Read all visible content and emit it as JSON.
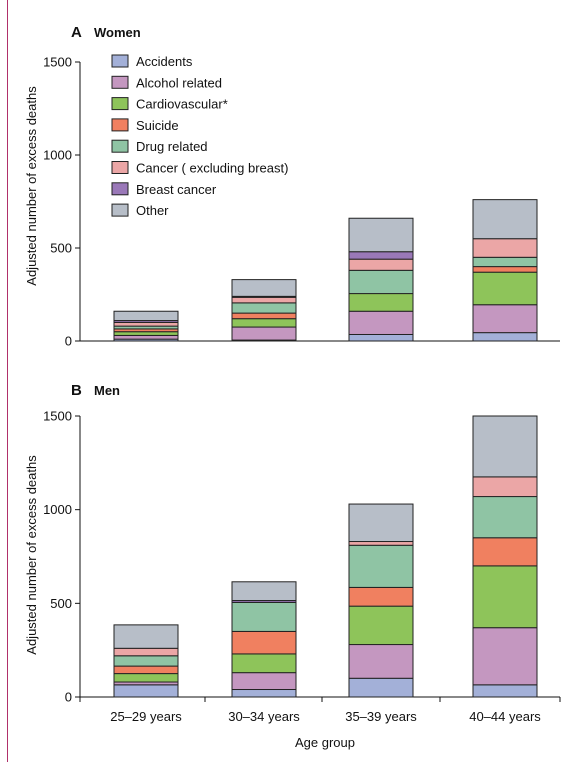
{
  "chart_data": [
    {
      "type": "bar",
      "stacked": true,
      "panel_letter": "A",
      "title": "Women",
      "categories": [
        "25–29 years",
        "30–34 years",
        "35–39 years",
        "40–44 years"
      ],
      "ylabel": "Adjusted number of excess deaths",
      "xlabel": "",
      "ylim": [
        0,
        1500
      ],
      "yticks": [
        0,
        500,
        1000,
        1500
      ],
      "series": [
        {
          "name": "Accidents",
          "color": "#a3b0d8",
          "values": [
            10,
            5,
            35,
            45
          ]
        },
        {
          "name": "Alcohol related",
          "color": "#c497c0",
          "values": [
            20,
            70,
            125,
            150
          ]
        },
        {
          "name": "Cardiovascular*",
          "color": "#8ec45a",
          "values": [
            20,
            45,
            95,
            175
          ]
        },
        {
          "name": "Suicide",
          "color": "#f08060",
          "values": [
            15,
            30,
            0,
            30
          ]
        },
        {
          "name": "Drug related",
          "color": "#8fc4a4",
          "values": [
            15,
            55,
            125,
            50
          ]
        },
        {
          "name": "Cancer ( excluding breast)",
          "color": "#eba6a6",
          "values": [
            20,
            30,
            60,
            100
          ]
        },
        {
          "name": "Breast cancer",
          "color": "#9a78b8",
          "values": [
            10,
            5,
            40,
            0
          ]
        },
        {
          "name": "Other",
          "color": "#b7bec8",
          "values": [
            50,
            90,
            180,
            210
          ]
        }
      ],
      "legend": "top-left",
      "grid": false
    },
    {
      "type": "bar",
      "stacked": true,
      "panel_letter": "B",
      "title": "Men",
      "categories": [
        "25–29 years",
        "30–34 years",
        "35–39 years",
        "40–44 years"
      ],
      "ylabel": "Adjusted number of excess deaths",
      "xlabel": "Age group",
      "ylim": [
        0,
        1500
      ],
      "yticks": [
        0,
        500,
        1000,
        1500
      ],
      "series": [
        {
          "name": "Accidents",
          "color": "#a3b0d8",
          "values": [
            65,
            40,
            100,
            65
          ]
        },
        {
          "name": "Alcohol related",
          "color": "#c497c0",
          "values": [
            15,
            90,
            180,
            305
          ]
        },
        {
          "name": "Cardiovascular*",
          "color": "#8ec45a",
          "values": [
            45,
            100,
            205,
            330
          ]
        },
        {
          "name": "Suicide",
          "color": "#f08060",
          "values": [
            40,
            120,
            100,
            150
          ]
        },
        {
          "name": "Drug related",
          "color": "#8fc4a4",
          "values": [
            55,
            155,
            225,
            220
          ]
        },
        {
          "name": "Cancer ( excluding breast)",
          "color": "#eba6a6",
          "values": [
            40,
            0,
            20,
            105
          ]
        },
        {
          "name": "Breast cancer",
          "color": "#9a78b8",
          "values": [
            0,
            10,
            0,
            0
          ]
        },
        {
          "name": "Other",
          "color": "#b7bec8",
          "values": [
            125,
            100,
            200,
            325
          ]
        }
      ],
      "grid": false
    }
  ]
}
